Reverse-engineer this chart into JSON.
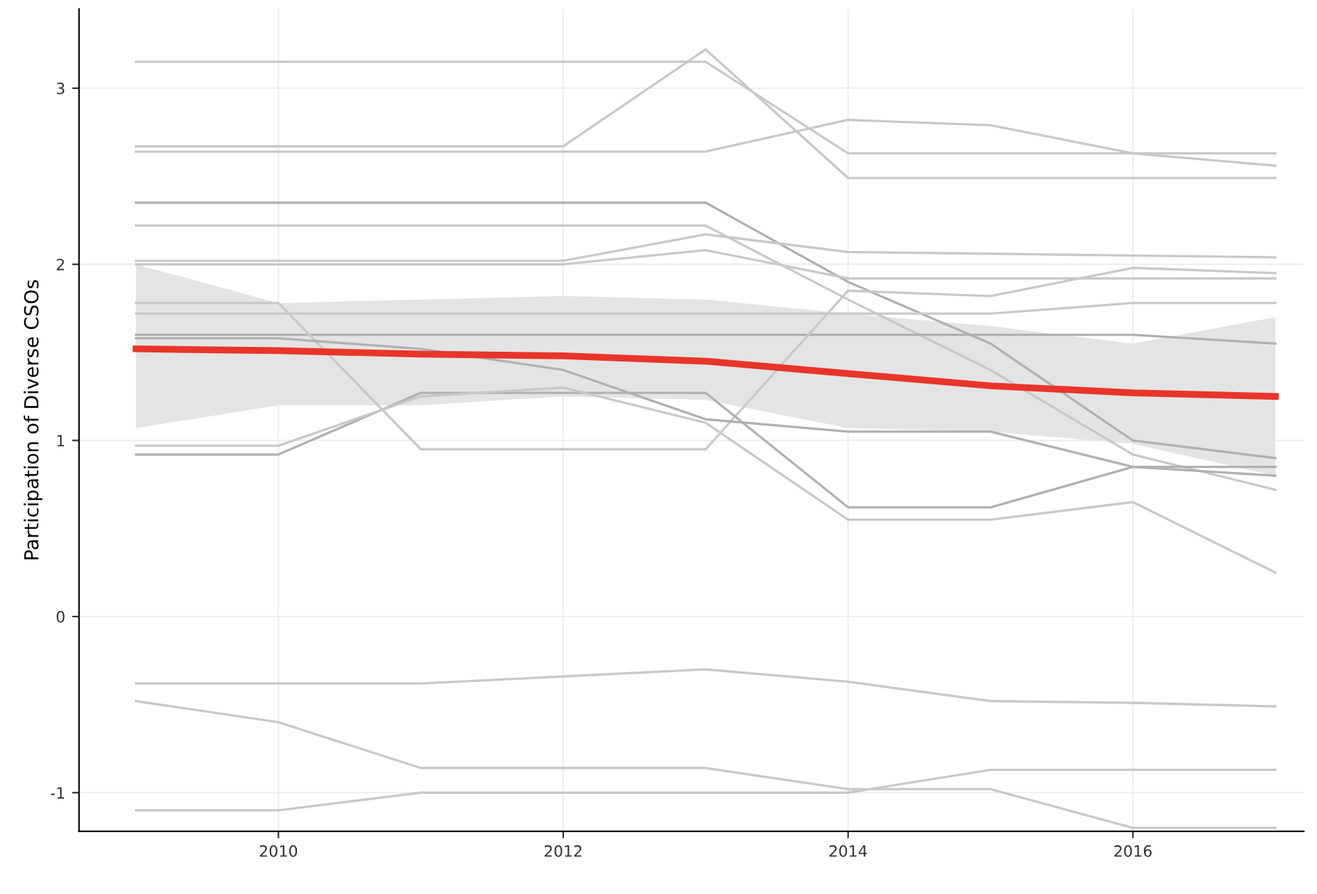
{
  "chart_data": {
    "type": "line",
    "ylabel": "Participation of Diverse CSOs",
    "x": [
      2009,
      2010,
      2011,
      2012,
      2013,
      2014,
      2015,
      2016,
      2017
    ],
    "xlim": [
      2008.6,
      2017.2
    ],
    "xticks": [
      2010,
      2012,
      2014,
      2016
    ],
    "ylim": [
      -1.22,
      3.45
    ],
    "yticks": [
      -1,
      0,
      1,
      2,
      3
    ],
    "grid": true,
    "series": [
      {
        "color": "#c8c8c8",
        "values": [
          3.15,
          3.15,
          3.15,
          3.15,
          3.15,
          2.63,
          2.63,
          2.63,
          2.63
        ]
      },
      {
        "color": "#c8c8c8",
        "values": [
          2.67,
          2.67,
          2.67,
          2.67,
          3.22,
          2.49,
          2.49,
          2.49,
          2.49
        ]
      },
      {
        "color": "#c8c8c8",
        "values": [
          2.64,
          2.64,
          2.64,
          2.64,
          2.64,
          2.82,
          2.79,
          2.63,
          2.56
        ]
      },
      {
        "color": "#b0b0b0",
        "values": [
          2.35,
          2.35,
          2.35,
          2.35,
          2.35,
          1.9,
          1.55,
          1.0,
          0.9
        ]
      },
      {
        "color": "#c8c8c8",
        "values": [
          2.22,
          2.22,
          2.22,
          2.22,
          2.22,
          1.8,
          1.4,
          0.92,
          0.72
        ]
      },
      {
        "color": "#c8c8c8",
        "values": [
          2.02,
          2.02,
          2.02,
          2.02,
          2.17,
          2.07,
          2.06,
          2.05,
          2.04
        ]
      },
      {
        "color": "#c8c8c8",
        "values": [
          2.0,
          2.0,
          2.0,
          2.0,
          2.08,
          1.92,
          1.92,
          1.92,
          1.92
        ]
      },
      {
        "color": "#c8c8c8",
        "values": [
          1.72,
          1.72,
          1.72,
          1.72,
          1.72,
          1.72,
          1.72,
          1.78,
          1.78
        ]
      },
      {
        "color": "#b0b0b0",
        "values": [
          1.6,
          1.6,
          1.6,
          1.6,
          1.6,
          1.6,
          1.6,
          1.6,
          1.55
        ]
      },
      {
        "color": "#c8c8c8",
        "values": [
          1.78,
          1.78,
          0.95,
          0.95,
          0.95,
          1.85,
          1.82,
          1.98,
          1.95
        ]
      },
      {
        "color": "#b0b0b0",
        "values": [
          1.58,
          1.58,
          1.52,
          1.4,
          1.12,
          1.05,
          1.05,
          0.85,
          0.8
        ]
      },
      {
        "color": "#b0b0b0",
        "values": [
          0.92,
          0.92,
          1.27,
          1.27,
          1.27,
          0.62,
          0.62,
          0.85,
          0.85
        ]
      },
      {
        "color": "#c8c8c8",
        "values": [
          0.97,
          0.97,
          1.25,
          1.3,
          1.1,
          0.55,
          0.55,
          0.65,
          0.25
        ]
      },
      {
        "color": "#c8c8c8",
        "values": [
          -0.38,
          -0.38,
          -0.38,
          -0.34,
          -0.3,
          -0.37,
          -0.48,
          -0.49,
          -0.51
        ]
      },
      {
        "color": "#c8c8c8",
        "values": [
          -0.48,
          -0.6,
          -0.86,
          -0.86,
          -0.86,
          -0.98,
          -0.98,
          -1.2,
          -1.2
        ]
      },
      {
        "color": "#c8c8c8",
        "values": [
          -1.1,
          -1.1,
          -1.0,
          -1.0,
          -1.0,
          -1.0,
          -0.87,
          -0.87,
          -0.87
        ]
      },
      {
        "color": "#e8352a",
        "values": [
          1.52,
          1.51,
          1.49,
          1.48,
          1.45,
          1.38,
          1.31,
          1.27,
          1.25
        ],
        "lower": [
          1.07,
          1.2,
          1.2,
          1.25,
          1.23,
          1.07,
          1.05,
          0.98,
          0.8
        ],
        "upper": [
          2.0,
          1.78,
          1.8,
          1.82,
          1.8,
          1.72,
          1.65,
          1.55,
          1.7
        ]
      }
    ]
  }
}
